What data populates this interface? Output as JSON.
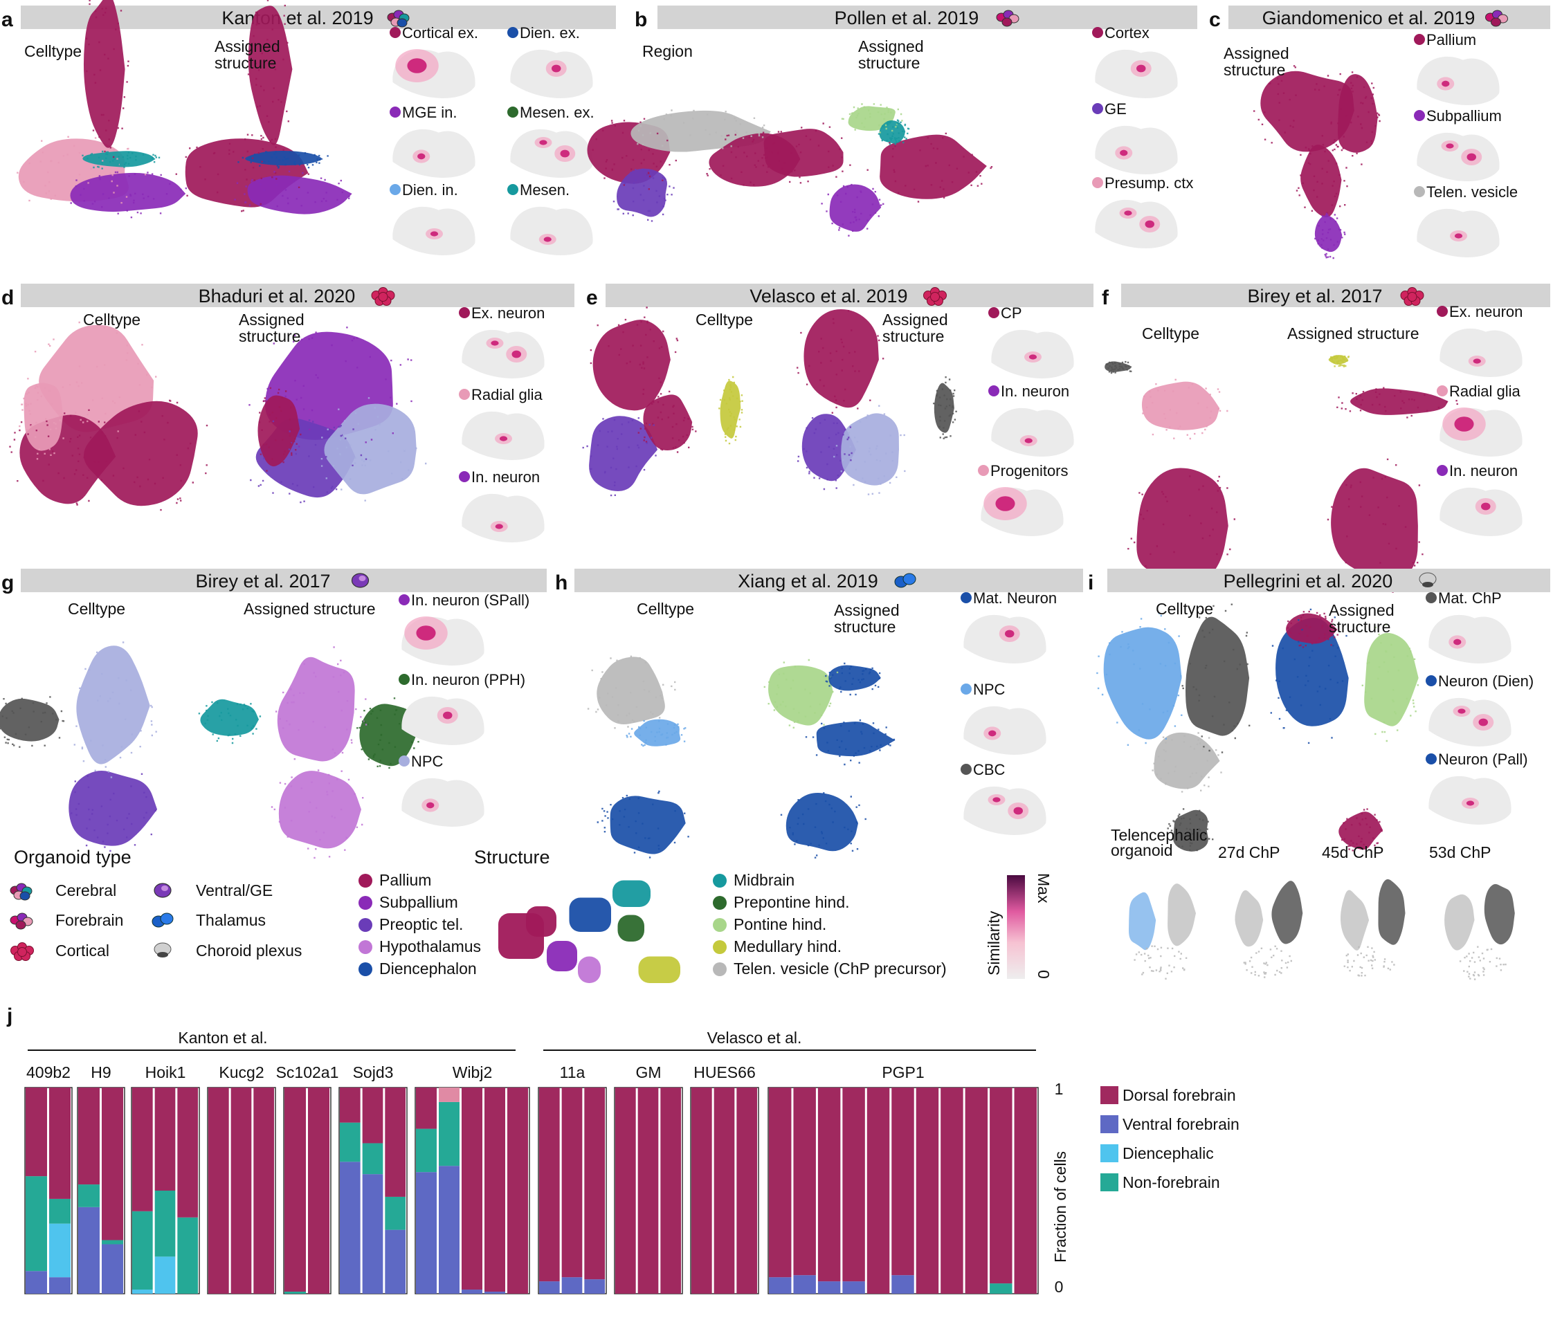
{
  "colors": {
    "pallium": "#a0195a",
    "subpallium": "#8a2ab7",
    "preoptic": "#6a3cb8",
    "hypothalamus": "#c176d6",
    "diencephalon": "#1a4fa8",
    "midbrain": "#16999e",
    "prepontine": "#2d6a2d",
    "pontine": "#a8d68a",
    "medullary": "#c4c93c",
    "telen": "#b8b8b8",
    "pink": "#e89ab6",
    "lightblue": "#6aa8e8",
    "lavender": "#a7aede",
    "darkgray": "#555555",
    "header_bg": "#d3d3d3",
    "dorsal": "#a0295f",
    "ventral": "#5e69c4",
    "diencephalic": "#4fc4ee",
    "nonforebrain": "#25a996",
    "topcap": "#e08aa4"
  },
  "panels": [
    {
      "letter": "a",
      "title": "Kanton et al. 2019",
      "org": "cerebral",
      "umaps": [
        "Celltype",
        "Assigned structure"
      ],
      "legend": [
        {
          "label": "Cortical ex.",
          "color": "pallium"
        },
        {
          "label": "Dien. ex.",
          "color": "diencephalon"
        },
        {
          "label": "MGE in.",
          "color": "subpallium"
        },
        {
          "label": "Mesen. ex.",
          "color": "prepontine"
        },
        {
          "label": "Dien. in.",
          "color": "lightblue"
        },
        {
          "label": "Mesen.",
          "color": "midbrain"
        }
      ]
    },
    {
      "letter": "b",
      "title": "Pollen et al. 2019",
      "org": "forebrain",
      "umaps": [
        "Region",
        "Assigned structure"
      ],
      "legend": [
        {
          "label": "Cortex",
          "color": "pallium"
        },
        {
          "label": "GE",
          "color": "preoptic"
        },
        {
          "label": "Presump. ctx",
          "color": "pink"
        }
      ]
    },
    {
      "letter": "c",
      "title": "Giandomenico et al. 2019",
      "org": "forebrain",
      "umaps": [
        "Assigned structure"
      ],
      "legend": [
        {
          "label": "Pallium",
          "color": "pallium"
        },
        {
          "label": "Subpallium",
          "color": "subpallium"
        },
        {
          "label": "Telen. vesicle",
          "color": "telen"
        }
      ]
    },
    {
      "letter": "d",
      "title": "Bhaduri et al. 2020",
      "org": "cortical",
      "umaps": [
        "Celltype",
        "Assigned structure"
      ],
      "legend": [
        {
          "label": "Ex. neuron",
          "color": "pallium"
        },
        {
          "label": "Radial glia",
          "color": "pink"
        },
        {
          "label": "In. neuron",
          "color": "subpallium"
        }
      ]
    },
    {
      "letter": "e",
      "title": "Velasco et al. 2019",
      "org": "cortical",
      "umaps": [
        "Celltype",
        "Assigned structure"
      ],
      "legend": [
        {
          "label": "CP",
          "color": "pallium"
        },
        {
          "label": "In. neuron",
          "color": "subpallium"
        },
        {
          "label": "Progenitors",
          "color": "pink"
        }
      ]
    },
    {
      "letter": "f",
      "title": "Birey et al. 2017",
      "org": "cortical",
      "umaps": [
        "Celltype",
        "Assigned structure"
      ],
      "legend": [
        {
          "label": "Ex. neuron",
          "color": "pallium"
        },
        {
          "label": "Radial glia",
          "color": "pink"
        },
        {
          "label": "In. neuron",
          "color": "subpallium"
        }
      ]
    },
    {
      "letter": "g",
      "title": "Birey et al. 2017",
      "org": "ventral",
      "umaps": [
        "Celltype",
        "Assigned structure"
      ],
      "legend": [
        {
          "label": "In. neuron (SPall)",
          "color": "subpallium"
        },
        {
          "label": "In. neuron (PPH)",
          "color": "prepontine"
        },
        {
          "label": "NPC",
          "color": "lavender"
        }
      ]
    },
    {
      "letter": "h",
      "title": "Xiang et al. 2019",
      "org": "thalamus",
      "umaps": [
        "Celltype",
        "Assigned structure"
      ],
      "legend": [
        {
          "label": "Mat. Neuron",
          "color": "diencephalon"
        },
        {
          "label": "NPC",
          "color": "lightblue"
        },
        {
          "label": "CBC",
          "color": "darkgray"
        }
      ]
    },
    {
      "letter": "i",
      "title": "Pellegrini et al. 2020",
      "org": "choroid",
      "umaps": [
        "Celltype",
        "Assigned structure"
      ],
      "legend": [
        {
          "label": "Mat. ChP",
          "color": "darkgray"
        },
        {
          "label": "Neuron (Dien)",
          "color": "diencephalon"
        },
        {
          "label": "Neuron (Pall)",
          "color": "diencephalon"
        }
      ],
      "subumaps": [
        "Telencephalic organoid",
        "27d ChP",
        "45d ChP",
        "53d ChP"
      ]
    }
  ],
  "organoid_legend": {
    "title": "Organoid type",
    "items": [
      {
        "label": "Cerebral",
        "icon": "cerebral"
      },
      {
        "label": "Forebrain",
        "icon": "forebrain"
      },
      {
        "label": "Cortical",
        "icon": "cortical"
      },
      {
        "label": "Ventral/GE",
        "icon": "ventral"
      },
      {
        "label": "Thalamus",
        "icon": "thalamus"
      },
      {
        "label": "Choroid plexus",
        "icon": "choroid"
      }
    ]
  },
  "structure_legend": {
    "title": "Structure",
    "items": [
      {
        "label": "Pallium",
        "color": "pallium"
      },
      {
        "label": "Subpallium",
        "color": "subpallium"
      },
      {
        "label": "Preoptic tel.",
        "color": "preoptic"
      },
      {
        "label": "Hypothalamus",
        "color": "hypothalamus"
      },
      {
        "label": "Diencephalon",
        "color": "diencephalon"
      },
      {
        "label": "Midbrain",
        "color": "midbrain"
      },
      {
        "label": "Prepontine hind.",
        "color": "prepontine"
      },
      {
        "label": "Pontine hind.",
        "color": "pontine"
      },
      {
        "label": "Medullary hind.",
        "color": "medullary"
      },
      {
        "label": "Telen. vesicle (ChP precursor)",
        "color": "telen"
      }
    ]
  },
  "similarity": {
    "label": "Similarity",
    "max": "Max",
    "min": "0"
  },
  "panel_j": {
    "letter": "j",
    "groups": [
      "Kanton et al.",
      "Velasco et al."
    ],
    "ylabel": "Fraction of cells",
    "ytop": "1",
    "ybottom": "0",
    "legend": [
      {
        "label": "Dorsal forebrain",
        "color": "dorsal"
      },
      {
        "label": "Ventral forebrain",
        "color": "ventral"
      },
      {
        "label": "Diencephalic",
        "color": "diencephalic"
      },
      {
        "label": "Non-forebrain",
        "color": "nonforebrain"
      }
    ]
  },
  "chart_data": {
    "type": "bar",
    "stacked": true,
    "ylabel": "Fraction of cells",
    "ylim": [
      0,
      1
    ],
    "series_order": [
      "Ventral forebrain",
      "Diencephalic",
      "Non-forebrain",
      "Dorsal forebrain"
    ],
    "groups": [
      {
        "name": "409b2",
        "group": "Kanton et al.",
        "bars": [
          {
            "v": 0.11,
            "d": 0.0,
            "n": 0.46,
            "t": 0
          },
          {
            "v": 0.08,
            "d": 0.26,
            "n": 0.12,
            "t": 0
          }
        ]
      },
      {
        "name": "H9",
        "group": "Kanton et al.",
        "bars": [
          {
            "v": 0.42,
            "d": 0,
            "n": 0.11,
            "t": 0
          },
          {
            "v": 0.24,
            "d": 0,
            "n": 0.02,
            "t": 0
          }
        ]
      },
      {
        "name": "Hoik1",
        "group": "Kanton et al.",
        "bars": [
          {
            "v": 0,
            "d": 0.02,
            "n": 0.38,
            "t": 0
          },
          {
            "v": 0,
            "d": 0.18,
            "n": 0.32,
            "t": 0
          },
          {
            "v": 0,
            "d": 0,
            "n": 0.37,
            "t": 0
          }
        ]
      },
      {
        "name": "Kucg2",
        "group": "Kanton et al.",
        "bars": [
          {
            "v": 0,
            "d": 0,
            "n": 0,
            "t": 0
          },
          {
            "v": 0,
            "d": 0,
            "n": 0,
            "t": 0
          },
          {
            "v": 0,
            "d": 0,
            "n": 0,
            "t": 0
          }
        ]
      },
      {
        "name": "Sc102a1",
        "group": "Kanton et al.",
        "bars": [
          {
            "v": 0,
            "d": 0,
            "n": 0.01,
            "t": 0
          },
          {
            "v": 0,
            "d": 0,
            "n": 0,
            "t": 0
          }
        ]
      },
      {
        "name": "Sojd3",
        "group": "Kanton et al.",
        "bars": [
          {
            "v": 0.64,
            "d": 0,
            "n": 0.19,
            "t": 0
          },
          {
            "v": 0.58,
            "d": 0,
            "n": 0.15,
            "t": 0
          },
          {
            "v": 0.31,
            "d": 0,
            "n": 0.16,
            "t": 0
          }
        ]
      },
      {
        "name": "Wibj2",
        "group": "Kanton et al.",
        "bars": [
          {
            "v": 0.59,
            "d": 0,
            "n": 0.21,
            "t": 0
          },
          {
            "v": 0.62,
            "d": 0,
            "n": 0.31,
            "t": 0.07
          },
          {
            "v": 0.02,
            "d": 0,
            "n": 0,
            "t": 0
          },
          {
            "v": 0.01,
            "d": 0,
            "n": 0,
            "t": 0
          },
          {
            "v": 0,
            "d": 0,
            "n": 0,
            "t": 0
          }
        ]
      },
      {
        "name": "11a",
        "group": "Velasco et al.",
        "bars": [
          {
            "v": 0.06,
            "d": 0,
            "n": 0,
            "t": 0
          },
          {
            "v": 0.08,
            "d": 0,
            "n": 0,
            "t": 0
          },
          {
            "v": 0.07,
            "d": 0,
            "n": 0,
            "t": 0
          }
        ]
      },
      {
        "name": "GM",
        "group": "Velasco et al.",
        "bars": [
          {
            "v": 0,
            "d": 0,
            "n": 0,
            "t": 0
          },
          {
            "v": 0,
            "d": 0,
            "n": 0,
            "t": 0
          },
          {
            "v": 0,
            "d": 0,
            "n": 0,
            "t": 0
          }
        ]
      },
      {
        "name": "HUES66",
        "group": "Velasco et al.",
        "bars": [
          {
            "v": 0,
            "d": 0,
            "n": 0,
            "t": 0
          },
          {
            "v": 0,
            "d": 0,
            "n": 0,
            "t": 0
          },
          {
            "v": 0,
            "d": 0,
            "n": 0,
            "t": 0
          }
        ]
      },
      {
        "name": "PGP1",
        "group": "Velasco et al.",
        "bars": [
          {
            "v": 0.08,
            "d": 0,
            "n": 0,
            "t": 0
          },
          {
            "v": 0.09,
            "d": 0,
            "n": 0,
            "t": 0
          },
          {
            "v": 0.06,
            "d": 0,
            "n": 0,
            "t": 0
          },
          {
            "v": 0.06,
            "d": 0,
            "n": 0,
            "t": 0
          },
          {
            "v": 0,
            "d": 0,
            "n": 0,
            "t": 0
          },
          {
            "v": 0.09,
            "d": 0,
            "n": 0,
            "t": 0
          },
          {
            "v": 0,
            "d": 0,
            "n": 0,
            "t": 0
          },
          {
            "v": 0,
            "d": 0,
            "n": 0,
            "t": 0
          },
          {
            "v": 0,
            "d": 0,
            "n": 0,
            "t": 0
          },
          {
            "v": 0,
            "d": 0,
            "n": 0.05,
            "t": 0
          },
          {
            "v": 0,
            "d": 0,
            "n": 0,
            "t": 0
          }
        ]
      }
    ],
    "legend": [
      "Dorsal forebrain",
      "Ventral forebrain",
      "Diencephalic",
      "Non-forebrain"
    ]
  }
}
